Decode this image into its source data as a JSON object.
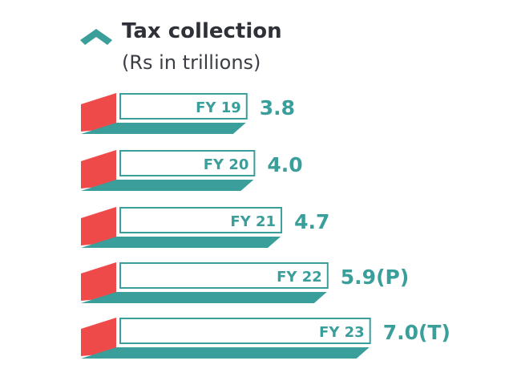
{
  "chart_data": {
    "type": "bar",
    "orientation": "horizontal",
    "title": "Tax collection",
    "subtitle": "(Rs in trillions)",
    "categories": [
      "FY 19",
      "FY 20",
      "FY 21",
      "FY 22",
      "FY 23"
    ],
    "values": [
      3.8,
      4.0,
      4.7,
      5.9,
      7.0
    ],
    "value_labels": [
      "3.8",
      "4.0",
      "4.7",
      "5.9(P)",
      "7.0(T)"
    ],
    "unit": "Rs trillion",
    "colors": {
      "teal": "#3a9e9b",
      "red": "#ef4a4a",
      "title": "#2e3138"
    }
  }
}
